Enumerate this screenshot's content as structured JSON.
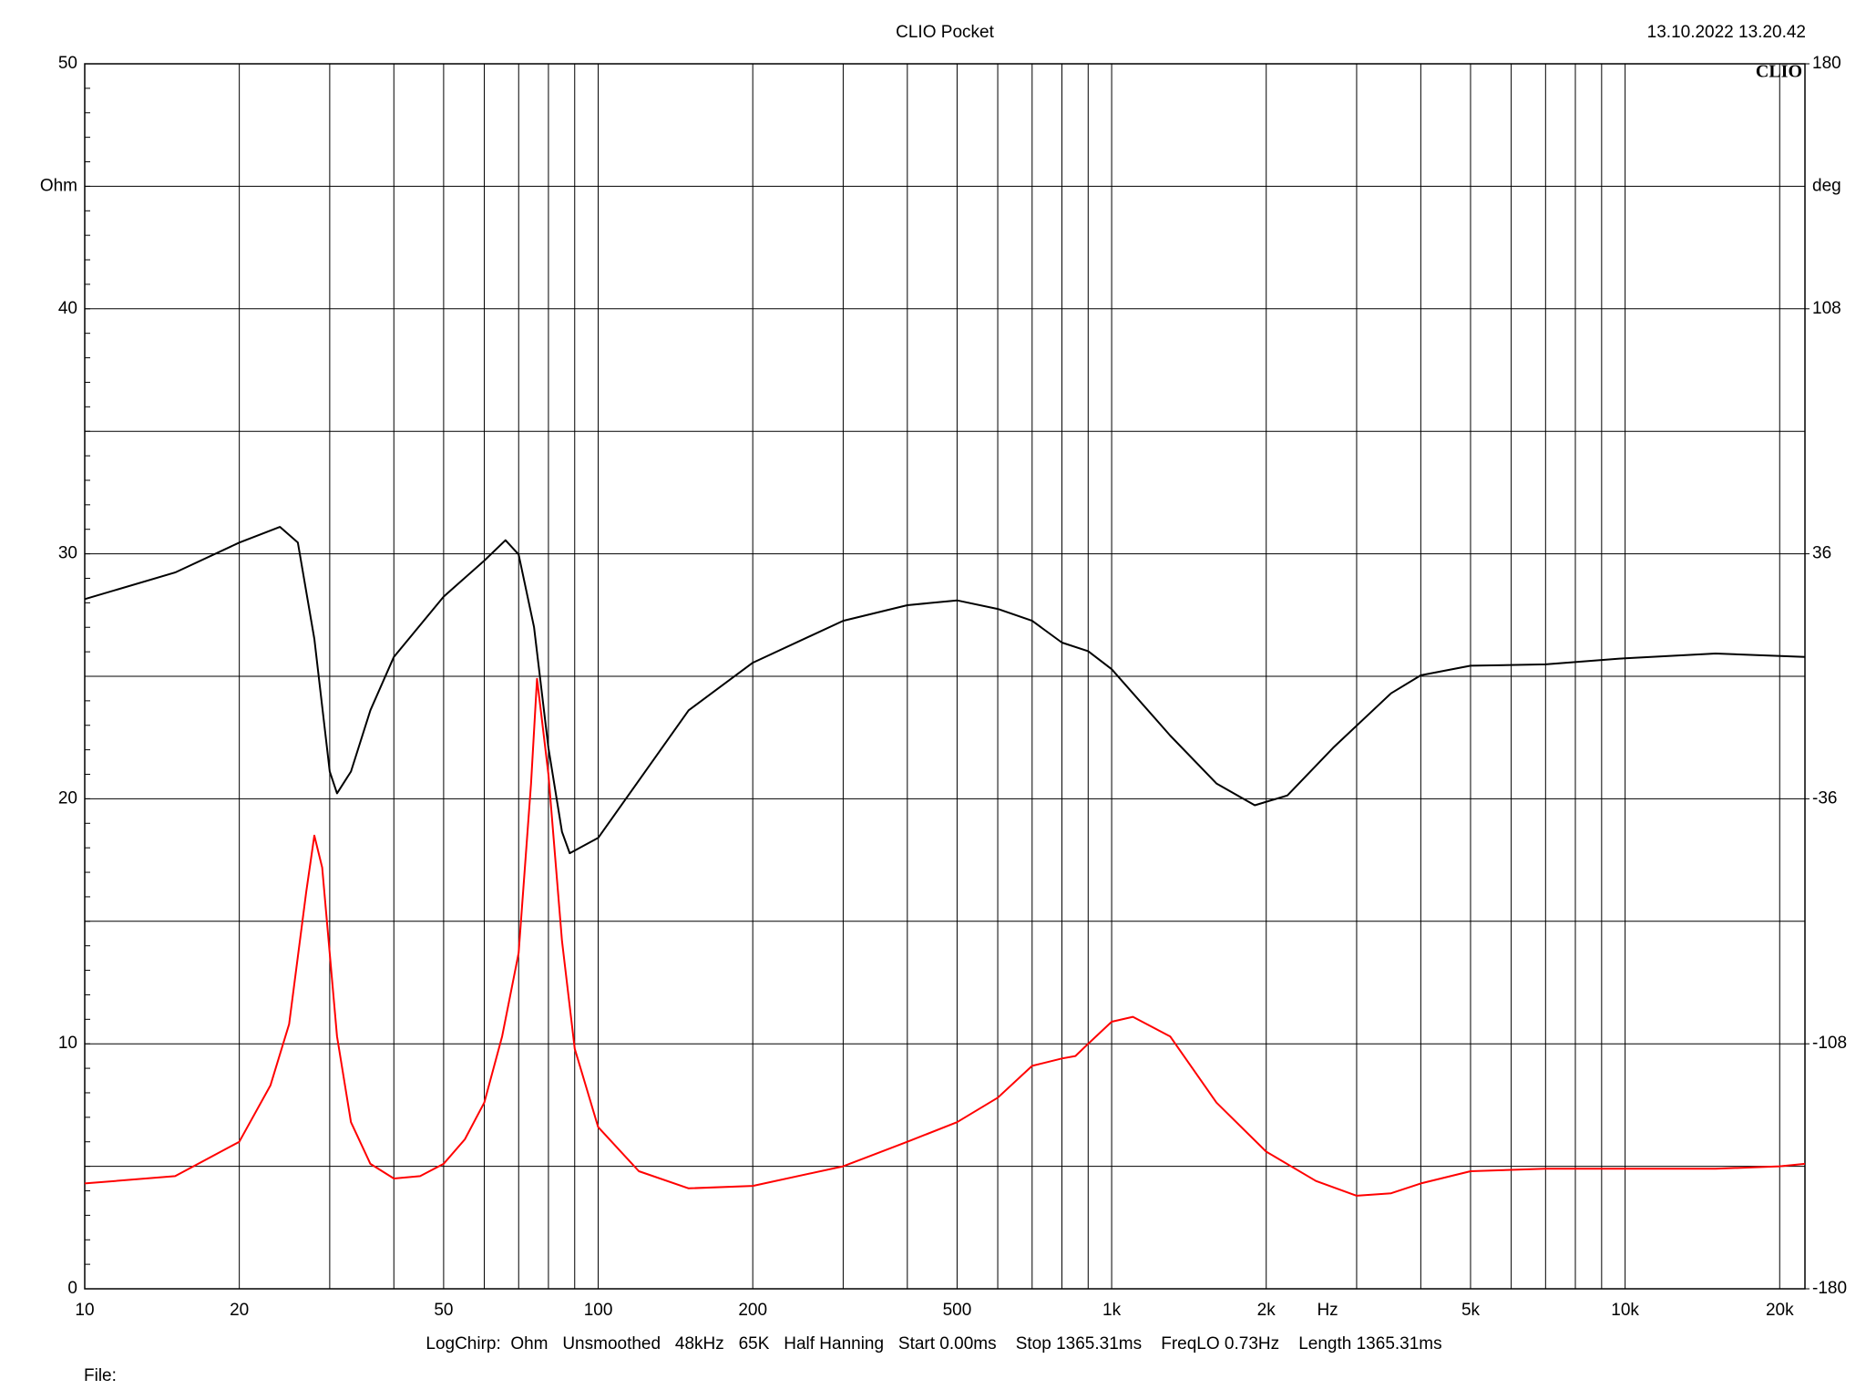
{
  "chart_data": {
    "type": "line",
    "title": "CLIO Pocket",
    "timestamp": "13.10.2022 13.20.42",
    "logo": "CLIO",
    "y_label": "Ohm",
    "y2_label": "deg",
    "x_label": "Hz",
    "footer": "LogChirp:  Ohm   Unsmoothed   48kHz   65K   Half Hanning   Start 0.00ms    Stop 1365.31ms    FreqLO 0.73Hz    Length 1365.31ms",
    "file_label": "File:",
    "xlog": true,
    "grid": true,
    "xlim": [
      10,
      22400
    ],
    "xticks": [
      10,
      20,
      50,
      100,
      200,
      500,
      {
        "value": 1000,
        "label": "1k"
      },
      {
        "value": 2000,
        "label": "2k"
      },
      {
        "value": 5000,
        "label": "5k"
      },
      {
        "value": 10000,
        "label": "10k"
      },
      {
        "value": 20000,
        "label": "20k"
      }
    ],
    "xminor": [
      30,
      40,
      60,
      70,
      80,
      90,
      300,
      400,
      600,
      700,
      800,
      900,
      3000,
      4000,
      6000,
      7000,
      8000,
      9000
    ],
    "ylim": [
      0,
      50
    ],
    "yticks": [
      0,
      10,
      20,
      30,
      40,
      50
    ],
    "yminor": [
      5,
      15,
      25,
      35,
      45
    ],
    "y2lim": [
      -180,
      180
    ],
    "y2ticks": [
      -180,
      -108,
      -36,
      36,
      108,
      180
    ],
    "series": [
      {
        "name": "Ohm",
        "color": "#ff0000",
        "x": [
          10,
          15,
          20,
          23,
          25,
          27,
          28,
          29,
          31,
          33,
          36,
          40,
          45,
          50,
          55,
          60,
          65,
          70,
          74,
          76,
          80,
          85,
          90,
          100,
          120,
          150,
          200,
          300,
          400,
          500,
          600,
          700,
          800,
          850,
          900,
          1000,
          1100,
          1300,
          1600,
          2000,
          2500,
          3000,
          3500,
          4000,
          5000,
          7000,
          10000,
          15000,
          20000,
          22400
        ],
        "values": [
          4.3,
          4.6,
          6.0,
          8.3,
          10.8,
          16.2,
          18.5,
          17.2,
          10.3,
          6.8,
          5.1,
          4.5,
          4.6,
          5.1,
          6.1,
          7.6,
          10.3,
          13.7,
          20.6,
          24.9,
          21.0,
          14.2,
          9.8,
          6.6,
          4.8,
          4.1,
          4.2,
          5.0,
          6.0,
          6.8,
          7.8,
          9.1,
          9.4,
          9.5,
          10.0,
          10.9,
          11.1,
          10.3,
          7.6,
          5.6,
          4.4,
          3.8,
          3.9,
          4.3,
          4.8,
          4.9,
          4.9,
          4.9,
          5.0,
          5.1
        ]
      },
      {
        "name": "deg",
        "color": "#000000",
        "axis": "y2",
        "x": [
          10,
          15,
          20,
          24,
          26,
          28,
          30,
          31,
          33,
          36,
          40,
          50,
          60,
          66,
          70,
          75,
          80,
          85,
          88,
          100,
          150,
          200,
          300,
          400,
          500,
          600,
          700,
          800,
          900,
          1000,
          1300,
          1600,
          1900,
          2200,
          2700,
          3500,
          4000,
          5000,
          7000,
          10000,
          15000,
          22400
        ],
        "values": [
          22.7,
          30.5,
          39.3,
          43.9,
          39.3,
          11,
          -28,
          -34.4,
          -28,
          -10,
          5.7,
          23.4,
          34,
          40,
          35.8,
          14.5,
          -21,
          -45.7,
          -52,
          -47.5,
          -10,
          4,
          16.3,
          20.9,
          22.3,
          19.8,
          16.3,
          9.9,
          7.4,
          2.1,
          -17.4,
          -31.5,
          -37.9,
          -35,
          -21,
          -5,
          0.3,
          3.1,
          3.5,
          5.3,
          6.7,
          5.7
        ]
      }
    ]
  }
}
